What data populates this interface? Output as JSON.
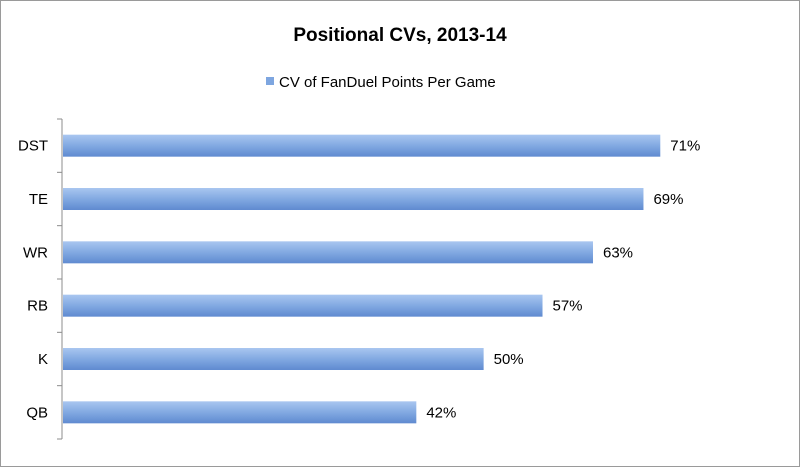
{
  "chart_data": {
    "type": "bar",
    "orientation": "horizontal",
    "title": "Positional CVs, 2013-14",
    "categories": [
      "DST",
      "TE",
      "WR",
      "RB",
      "K",
      "QB"
    ],
    "series": [
      {
        "name": "CV of FanDuel Points Per Game",
        "values": [
          71,
          69,
          63,
          57,
          50,
          42
        ],
        "labels": [
          "71%",
          "69%",
          "63%",
          "57%",
          "50%",
          "42%"
        ]
      }
    ],
    "xlim": [
      0,
      80
    ],
    "legend": "top",
    "grid": false,
    "colors": {
      "bar": "#7ea6e0",
      "bar_light": "#a9c6f0",
      "bar_dark": "#5f8ad0"
    }
  }
}
